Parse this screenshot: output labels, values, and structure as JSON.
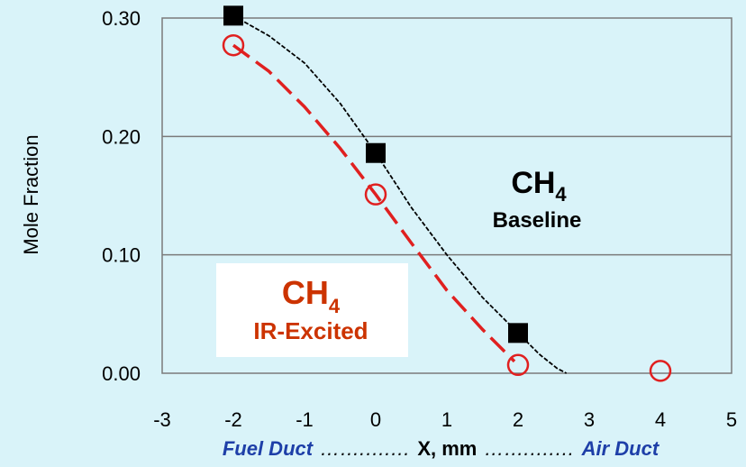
{
  "chart_data": {
    "type": "scatter",
    "xlim": [
      -3,
      5
    ],
    "ylim": [
      0,
      0.3
    ],
    "grid": "horizontal",
    "ylabel": "Mole Fraction",
    "xlabel": {
      "left": "Fuel Duct",
      "dots_left": "…….….…",
      "center": "X, mm",
      "dots_right": "…….….…",
      "right": "Air Duct"
    },
    "x_ticks": [
      "-3",
      "-2",
      "-1",
      "0",
      "1",
      "2",
      "3",
      "4",
      "5"
    ],
    "y_ticks": [
      "0.00",
      "0.10",
      "0.20",
      "0.30"
    ],
    "series": [
      {
        "color": "#000000",
        "marker": "filled-square",
        "points": [
          {
            "x": -2,
            "y": 0.302
          },
          {
            "x": 0,
            "y": 0.186
          },
          {
            "x": 2,
            "y": 0.034
          }
        ],
        "curve": [
          {
            "x": -2,
            "y": 0.302
          },
          {
            "x": -1.5,
            "y": 0.285
          },
          {
            "x": -1,
            "y": 0.262
          },
          {
            "x": -0.5,
            "y": 0.228
          },
          {
            "x": 0,
            "y": 0.186
          },
          {
            "x": 0.5,
            "y": 0.14
          },
          {
            "x": 1,
            "y": 0.1
          },
          {
            "x": 1.5,
            "y": 0.064
          },
          {
            "x": 2,
            "y": 0.034
          },
          {
            "x": 2.3,
            "y": 0.016
          },
          {
            "x": 2.55,
            "y": 0.004
          },
          {
            "x": 2.68,
            "y": 0.0
          }
        ]
      },
      {
        "color": "#e02020",
        "marker": "open-circle",
        "points": [
          {
            "x": -2,
            "y": 0.277
          },
          {
            "x": 0,
            "y": 0.151
          },
          {
            "x": 2,
            "y": 0.007
          },
          {
            "x": 4,
            "y": 0.002
          }
        ],
        "curve": [
          {
            "x": -2,
            "y": 0.277
          },
          {
            "x": -1.5,
            "y": 0.255
          },
          {
            "x": -1,
            "y": 0.225
          },
          {
            "x": -0.5,
            "y": 0.19
          },
          {
            "x": 0,
            "y": 0.151
          },
          {
            "x": 0.5,
            "y": 0.11
          },
          {
            "x": 1,
            "y": 0.07
          },
          {
            "x": 1.5,
            "y": 0.037
          },
          {
            "x": 1.95,
            "y": 0.01
          }
        ]
      }
    ],
    "annotations": {
      "baseline": {
        "main": "CH",
        "sub": "4",
        "label": "Baseline",
        "color": "#000000"
      },
      "ir": {
        "main": "CH",
        "sub": "4",
        "label": "IR-Excited",
        "color": "#cc3300"
      }
    }
  }
}
